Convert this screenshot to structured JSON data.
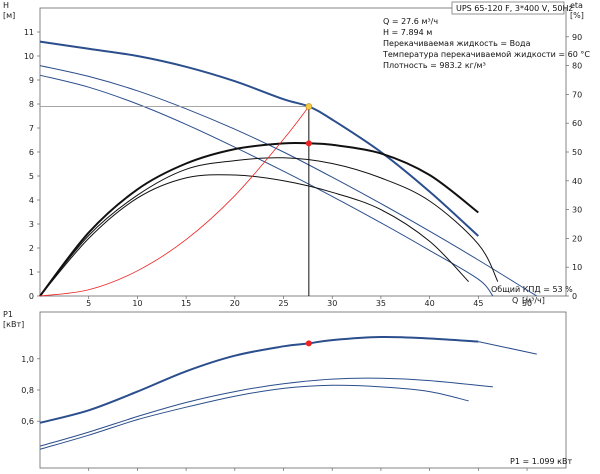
{
  "chart_data": [
    {
      "type": "line",
      "title": "UPS 65-120 F, 3*400 V, 50Hz",
      "ylabel": "H",
      "yunit": "[м]",
      "y2label": "eta",
      "y2unit": "[%]",
      "xlabel": "Q",
      "xunit": "[м³/ч]",
      "xlim": [
        0,
        54
      ],
      "ylim": [
        0,
        12
      ],
      "y2lim": [
        0,
        100
      ],
      "x_ticks": [
        "5",
        "10",
        "15",
        "20",
        "25",
        "30",
        "35",
        "40",
        "45",
        "50"
      ],
      "y_ticks": [
        "0",
        "1",
        "2",
        "3",
        "4",
        "5",
        "6",
        "7",
        "8",
        "9",
        "10",
        "11"
      ],
      "y2_ticks": [
        "0",
        "10",
        "20",
        "30",
        "40",
        "50",
        "60",
        "70",
        "80",
        "90"
      ],
      "grid": false,
      "info_lines": [
        "Q = 27.6 м³/ч",
        "H = 7.894 м",
        "Перекачиваемая жидкость = Вода",
        "Температура перекачиваемой жидкости = 60 °C",
        "Плотность = 983.2 кг/м³"
      ],
      "efficiency_note": "Общий КПД = 53 %",
      "duty_point": {
        "q": 27.6,
        "h": 7.894,
        "eta": 53
      },
      "series": [
        {
          "kind": "head",
          "color": "#2b4e8c",
          "bold": true,
          "x": [
            0,
            5,
            10,
            15,
            20,
            25,
            27.6,
            30,
            35,
            40,
            45
          ],
          "y": [
            10.6,
            10.3,
            10.0,
            9.55,
            8.95,
            8.2,
            7.894,
            7.35,
            6.0,
            4.35,
            2.5
          ]
        },
        {
          "kind": "head",
          "color": "#2b4e8c",
          "bold": false,
          "x": [
            0,
            5,
            10,
            15,
            20,
            25,
            30,
            35,
            40,
            45,
            50,
            51
          ],
          "y": [
            9.6,
            9.15,
            8.55,
            7.8,
            6.95,
            6.0,
            4.95,
            3.85,
            2.7,
            1.5,
            0.25,
            0
          ]
        },
        {
          "kind": "head",
          "color": "#2b4e8c",
          "bold": false,
          "x": [
            0,
            5,
            10,
            15,
            20,
            25,
            30,
            35,
            40,
            45,
            46.5
          ],
          "y": [
            9.2,
            8.7,
            8.0,
            7.15,
            6.2,
            5.2,
            4.15,
            3.05,
            1.9,
            0.7,
            0
          ]
        },
        {
          "kind": "eta",
          "color": "#111111",
          "bold": true,
          "x": [
            0,
            5,
            10,
            15,
            20,
            25,
            27.6,
            30,
            35,
            40,
            45
          ],
          "y": [
            0,
            22,
            37,
            46,
            51,
            53,
            53,
            52.5,
            49.5,
            42,
            29
          ]
        },
        {
          "kind": "eta",
          "color": "#111111",
          "bold": false,
          "x": [
            0,
            5,
            10,
            15,
            20,
            25,
            30,
            35,
            40,
            44
          ],
          "y": [
            0,
            20,
            34,
            41,
            42,
            40,
            36,
            30,
            19,
            5
          ]
        },
        {
          "kind": "eta",
          "color": "#111111",
          "bold": false,
          "x": [
            0,
            5,
            10,
            15,
            20,
            25,
            30,
            35,
            40,
            45,
            47
          ],
          "y": [
            0,
            21,
            35,
            44,
            47,
            48,
            46,
            41,
            33,
            18,
            5
          ]
        },
        {
          "kind": "system",
          "color": "#ee2222",
          "bold": false,
          "x": [
            0,
            5,
            10,
            15,
            20,
            25,
            27.6
          ],
          "y": [
            0,
            0.26,
            1.05,
            2.35,
            4.18,
            6.53,
            7.894
          ]
        }
      ]
    },
    {
      "type": "line",
      "ylabel": "P1",
      "yunit": "[кВт]",
      "xlim": [
        0,
        54
      ],
      "ylim": [
        0.3,
        1.3
      ],
      "y_ticks": [
        "0,6",
        "0,8",
        "1,0"
      ],
      "power_note": "P1 = 1.099 кВт",
      "duty_point": {
        "q": 27.6,
        "p": 1.099
      },
      "series": [
        {
          "color": "#2b4e8c",
          "bold": true,
          "x": [
            0,
            5,
            10,
            15,
            20,
            25,
            27.6,
            30,
            35,
            40,
            45
          ],
          "y": [
            0.59,
            0.67,
            0.79,
            0.92,
            1.02,
            1.08,
            1.099,
            1.12,
            1.14,
            1.13,
            1.11
          ]
        },
        {
          "color": "#2b4e8c",
          "bold": false,
          "x": [
            45,
            51
          ],
          "y": [
            1.11,
            1.03
          ]
        },
        {
          "color": "#2b4e8c",
          "bold": false,
          "x": [
            0,
            5,
            10,
            15,
            20,
            25,
            30,
            35,
            40,
            46.5
          ],
          "y": [
            0.44,
            0.53,
            0.63,
            0.72,
            0.79,
            0.84,
            0.87,
            0.875,
            0.86,
            0.82
          ]
        },
        {
          "color": "#2b4e8c",
          "bold": false,
          "x": [
            0,
            5,
            10,
            15,
            20,
            25,
            30,
            35,
            40,
            44
          ],
          "y": [
            0.42,
            0.51,
            0.61,
            0.69,
            0.76,
            0.81,
            0.83,
            0.82,
            0.79,
            0.73
          ]
        }
      ]
    }
  ]
}
